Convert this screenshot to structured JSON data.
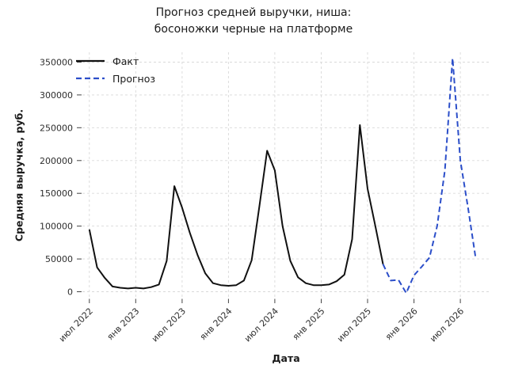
{
  "chart_data": {
    "type": "line",
    "title_lines": [
      "Прогноз средней выручки, ниша:",
      "босоножки черные на платформе"
    ],
    "xlabel": "Дата",
    "ylabel": "Средняя выручка, руб.",
    "grid": true,
    "legend_position": "top-left",
    "ylim": [
      0,
      350000
    ],
    "yticks": [
      0,
      50000,
      100000,
      150000,
      200000,
      250000,
      300000,
      350000
    ],
    "xticks": [
      {
        "month": "2022-07",
        "label": "июл 2022"
      },
      {
        "month": "2023-01",
        "label": "янв 2023"
      },
      {
        "month": "2023-07",
        "label": "июл 2023"
      },
      {
        "month": "2024-01",
        "label": "янв 2024"
      },
      {
        "month": "2024-07",
        "label": "июл 2024"
      },
      {
        "month": "2025-01",
        "label": "янв 2025"
      },
      {
        "month": "2025-07",
        "label": "июл 2025"
      },
      {
        "month": "2026-01",
        "label": "янв 2026"
      },
      {
        "month": "2026-07",
        "label": "июл 2026"
      }
    ],
    "colors": {
      "fact": "#111111",
      "forecast": "#2b4ec9",
      "grid": "#d9d9d9",
      "tick": "#444444"
    },
    "series": [
      {
        "name": "Факт",
        "style": "solid",
        "months": [
          "2022-07",
          "2022-08",
          "2022-09",
          "2022-10",
          "2022-11",
          "2022-12",
          "2023-01",
          "2023-02",
          "2023-03",
          "2023-04",
          "2023-05",
          "2023-06",
          "2023-07",
          "2023-08",
          "2023-09",
          "2023-10",
          "2023-11",
          "2023-12",
          "2024-01",
          "2024-02",
          "2024-03",
          "2024-04",
          "2024-05",
          "2024-06",
          "2024-07",
          "2024-08",
          "2024-09",
          "2024-10",
          "2024-11",
          "2024-12",
          "2025-01",
          "2025-02",
          "2025-03",
          "2025-04",
          "2025-05",
          "2025-06",
          "2025-07",
          "2025-08",
          "2025-09"
        ],
        "values": [
          95000,
          37000,
          21000,
          8000,
          6000,
          5000,
          6000,
          5000,
          7000,
          11000,
          47000,
          161000,
          128000,
          90000,
          56000,
          28000,
          13000,
          10000,
          9000,
          10000,
          17000,
          48000,
          130000,
          215000,
          185000,
          100000,
          47000,
          22000,
          13000,
          10000,
          10000,
          11000,
          16000,
          26000,
          80000,
          254000,
          157000,
          100000,
          42000
        ]
      },
      {
        "name": "Прогноз",
        "style": "dashed",
        "months": [
          "2025-09",
          "2025-10",
          "2025-11",
          "2025-12",
          "2026-01",
          "2026-02",
          "2026-03",
          "2026-04",
          "2026-05",
          "2026-06",
          "2026-07",
          "2026-08",
          "2026-09"
        ],
        "values": [
          42000,
          17000,
          18000,
          -2000,
          25000,
          38000,
          52000,
          100000,
          185000,
          356000,
          200000,
          128000,
          50000
        ]
      }
    ]
  }
}
